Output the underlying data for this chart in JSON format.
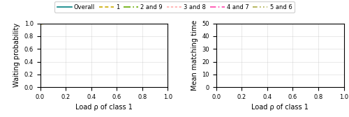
{
  "legend_labels": [
    "Overall",
    "1",
    "2 and 9",
    "3 and 8",
    "4 and 7",
    "5 and 6"
  ],
  "colors": [
    "#008080",
    "#ccaa00",
    "#66aa00",
    "#ffaaaa",
    "#ff44aa",
    "#aaaa44"
  ],
  "xlabel": "Load ρ of class 1",
  "ylabel_left": "Waiting probability",
  "ylabel_right": "Mean matching time",
  "xlim": [
    0,
    1
  ],
  "ylim_left": [
    0,
    1
  ],
  "ylim_right": [
    0,
    50
  ],
  "N": 9,
  "n_points": 300
}
